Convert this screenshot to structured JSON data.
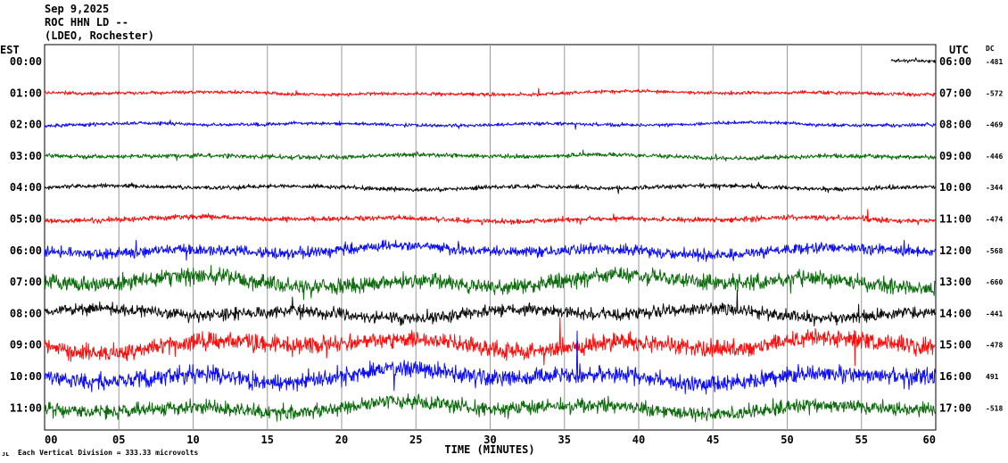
{
  "header": {
    "date": "Sep 9,2025",
    "station": "ROC HHN LD --",
    "network": "(LDEO, Rochester)"
  },
  "chart_data": {
    "type": "line",
    "left_axis_title": "EST",
    "right_axis_title": "UTC",
    "dc_title": "DC",
    "xlabel": "TIME (MINUTES)",
    "xlim": [
      0,
      60
    ],
    "x_ticks": [
      "00",
      "05",
      "10",
      "15",
      "20",
      "25",
      "30",
      "35",
      "40",
      "45",
      "50",
      "55",
      "60"
    ],
    "scale_note": "Each Vertical Division =  333.33 microvolts",
    "corner_mark": "ᴊʟ",
    "traces": [
      {
        "est": "00:00",
        "utc": "06:00",
        "dc": "-481",
        "color": "#000000",
        "amplitude": 4,
        "start_minute": 57
      },
      {
        "est": "01:00",
        "utc": "07:00",
        "dc": "-572",
        "color": "#ff0000",
        "amplitude": 4
      },
      {
        "est": "02:00",
        "utc": "08:00",
        "dc": "-469",
        "color": "#0000ff",
        "amplitude": 4
      },
      {
        "est": "03:00",
        "utc": "09:00",
        "dc": "-446",
        "color": "#006400",
        "amplitude": 5
      },
      {
        "est": "04:00",
        "utc": "10:00",
        "dc": "-344",
        "color": "#000000",
        "amplitude": 5
      },
      {
        "est": "05:00",
        "utc": "11:00",
        "dc": "-474",
        "color": "#ff0000",
        "amplitude": 6
      },
      {
        "est": "06:00",
        "utc": "12:00",
        "dc": "-568",
        "color": "#0000ff",
        "amplitude": 12
      },
      {
        "est": "07:00",
        "utc": "13:00",
        "dc": "-660",
        "color": "#006400",
        "amplitude": 18
      },
      {
        "est": "08:00",
        "utc": "14:00",
        "dc": "-441",
        "color": "#000000",
        "amplitude": 14
      },
      {
        "est": "09:00",
        "utc": "15:00",
        "dc": "-478",
        "color": "#ff0000",
        "amplitude": 20
      },
      {
        "est": "10:00",
        "utc": "16:00",
        "dc": "491",
        "color": "#0000ff",
        "amplitude": 20
      },
      {
        "est": "11:00",
        "utc": "17:00",
        "dc": "-518",
        "color": "#006400",
        "amplitude": 16
      }
    ]
  }
}
